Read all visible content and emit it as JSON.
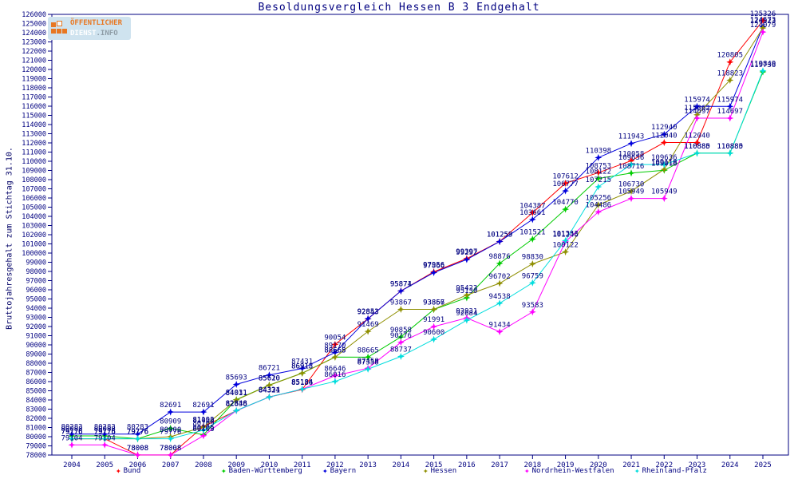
{
  "title": "Besoldungsvergleich Hessen B 3 Endgehalt",
  "y_axis_label": "Bruttojahresgehalt zum Stichtag 31.10.",
  "logo": {
    "line1": "ÖFFENTLICHER",
    "line2_strong": "DIENST",
    "line2_rest": ".INFO"
  },
  "axis_color": "#000080",
  "label_color": "#000080",
  "chart_data": {
    "type": "line",
    "title": "Besoldungsvergleich Hessen B 3 Endgehalt",
    "ylabel": "Bruttojahresgehalt zum Stichtag 31.10.",
    "ylim": [
      78000,
      126000
    ],
    "ytick_step": 1000,
    "grid": false,
    "legend_position": "bottom",
    "x": [
      2004,
      2005,
      2006,
      2007,
      2008,
      2009,
      2010,
      2011,
      2012,
      2013,
      2014,
      2015,
      2016,
      2017,
      2018,
      2019,
      2020,
      2021,
      2022,
      2023,
      2024,
      2025
    ],
    "series": [
      {
        "name": "Bund",
        "color": "#ff0000",
        "values": [
          79776,
          79776,
          78008,
          78008,
          81103,
          82838,
          84334,
          85136,
          90054,
          92843,
          95874,
          97956,
          99397,
          101259,
          104387,
          107612,
          108753,
          110058,
          112040,
          112040,
          120805,
          125326
        ]
      },
      {
        "name": "Baden-Württemberg",
        "color": "#00cc00",
        "values": [
          80088,
          80088,
          79776,
          80909,
          80206,
          84031,
          85620,
          86918,
          88668,
          88665,
          90858,
          93856,
          95130,
          98876,
          101521,
          104770,
          108122,
          108716,
          109018,
          110885,
          110885,
          119736
        ]
      },
      {
        "name": "Bayern",
        "color": "#0000dd",
        "values": [
          80283,
          80283,
          80283,
          82691,
          82691,
          85693,
          86721,
          87431,
          89170,
          92853,
          95871,
          97866,
          99292,
          101253,
          103661,
          106777,
          110398,
          111943,
          112940,
          115974,
          115974,
          124673
        ]
      },
      {
        "name": "Hessen",
        "color": "#8f8f00",
        "values": [
          79776,
          79776,
          79776,
          80000,
          81050,
          84011,
          85610,
          86913,
          88665,
          91469,
          93867,
          93867,
          95423,
          96702,
          98830,
          100122,
          105256,
          106730,
          109118,
          115062,
          118823,
          124523
        ]
      },
      {
        "name": "Nordrhein-Westfalen",
        "color": "#ff00ff",
        "values": [
          79104,
          79104,
          78008,
          78008,
          80103,
          82836,
          84321,
          85184,
          86646,
          87458,
          90276,
          91991,
          92931,
          91434,
          93583,
          101246,
          104486,
          105949,
          105949,
          114697,
          114697,
          124079
        ]
      },
      {
        "name": "Rheinland-Pfalz",
        "color": "#00dddd",
        "values": [
          79776,
          79776,
          79776,
          79776,
          80709,
          82848,
          84321,
          85184,
          86016,
          87358,
          88737,
          90600,
          92684,
          94538,
          96759,
          101353,
          107215,
          109656,
          109636,
          110880,
          110880,
          119849
        ]
      }
    ]
  },
  "legend_x_positions": [
    145,
    277,
    404,
    530,
    657,
    795
  ]
}
